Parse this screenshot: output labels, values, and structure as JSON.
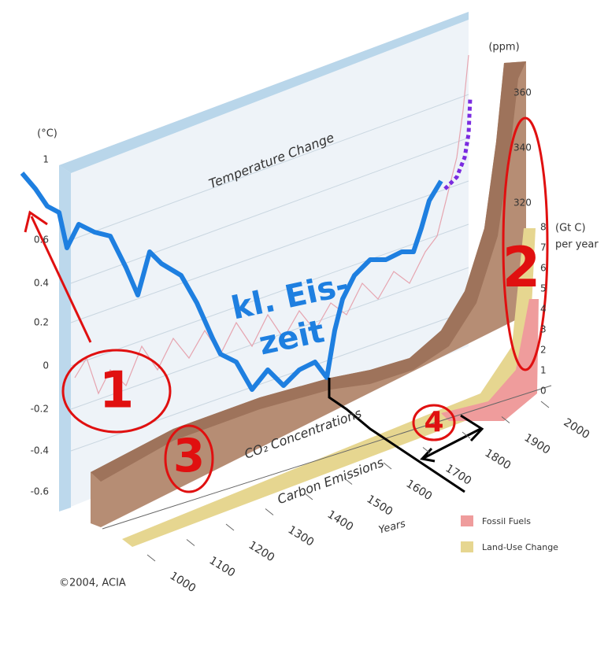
{
  "figure": {
    "temperature_panel": {
      "title": "Temperature Change",
      "unit": "(°C)",
      "ticks": [
        1,
        0.6,
        0.4,
        0.2,
        0,
        -0.2,
        -0.4,
        -0.6
      ]
    },
    "co2_panel": {
      "title": "CO₂ Concentrations",
      "unit": "(ppm)",
      "ticks": [
        360,
        340,
        320
      ]
    },
    "emissions_panel": {
      "title": "Carbon Emissions",
      "unit": "(Gt C)",
      "unit_line2": "per year",
      "ticks": [
        8,
        7,
        6,
        5,
        4,
        3,
        2,
        1,
        0
      ]
    },
    "years_axis": {
      "label": "Years",
      "ticks": [
        1000,
        1100,
        1200,
        1300,
        1400,
        1500,
        1600,
        1700,
        1800,
        1900,
        2000
      ]
    },
    "legend": [
      "Fossil Fuels",
      "Land-Use Change"
    ],
    "credit": "©2004, ACIA",
    "annotations": {
      "one": "1",
      "two": "2",
      "three": "3",
      "four": "4",
      "eis_line1": "kl. Eis-",
      "eis_line2": "zeit"
    }
  }
}
